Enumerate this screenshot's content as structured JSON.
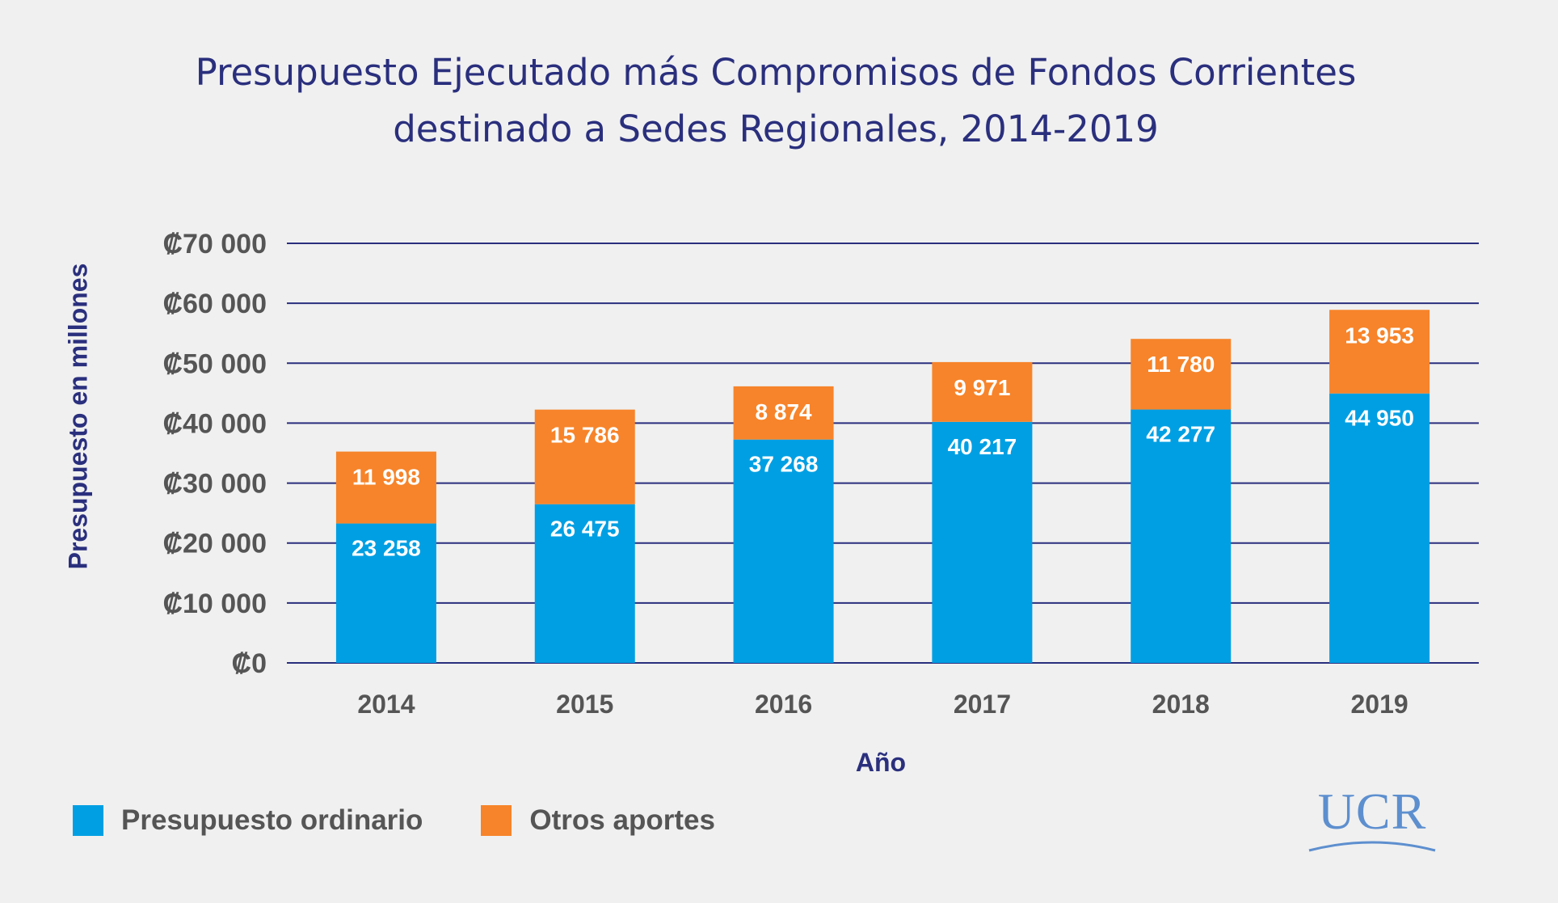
{
  "title_lines": [
    "Presupuesto Ejecutado más Compromisos de Fondos Corrientes",
    "destinado a Sedes Regionales, 2014-2019"
  ],
  "logo_text": "UCR",
  "colors": {
    "ordinario": "#009fe3",
    "otros": "#f7842a",
    "gridline": "#2a2f7d",
    "title": "#2a2f7d",
    "tick_text": "#555555",
    "bar_label": "#ffffff"
  },
  "chart_data": {
    "type": "bar",
    "stacked": true,
    "title": "Presupuesto Ejecutado más Compromisos de Fondos Corrientes destinado a Sedes Regionales, 2014-2019",
    "xlabel": "Año",
    "ylabel": "Presupuesto en millones",
    "categories": [
      "2014",
      "2015",
      "2016",
      "2017",
      "2018",
      "2019"
    ],
    "series": [
      {
        "name": "Presupuesto ordinario",
        "values": [
          23258,
          26475,
          37268,
          40217,
          42277,
          44950
        ],
        "labels": [
          "23 258",
          "26 475",
          "37 268",
          "40 217",
          "42 277",
          "44 950"
        ]
      },
      {
        "name": "Otros aportes",
        "values": [
          11998,
          15786,
          8874,
          9971,
          11780,
          13953
        ],
        "labels": [
          "11 998",
          "15 786",
          "8 874",
          "9 971",
          "11 780",
          "13 953"
        ]
      }
    ],
    "ylim": [
      0,
      70000
    ],
    "yticks": [
      0,
      10000,
      20000,
      30000,
      40000,
      50000,
      60000,
      70000
    ],
    "ytick_labels": [
      "₡0",
      "₡10 000",
      "₡20 000",
      "₡30 000",
      "₡40 000",
      "₡50 000",
      "₡60 000",
      "₡70 000"
    ],
    "grid": true,
    "legend_position": "bottom-left"
  }
}
